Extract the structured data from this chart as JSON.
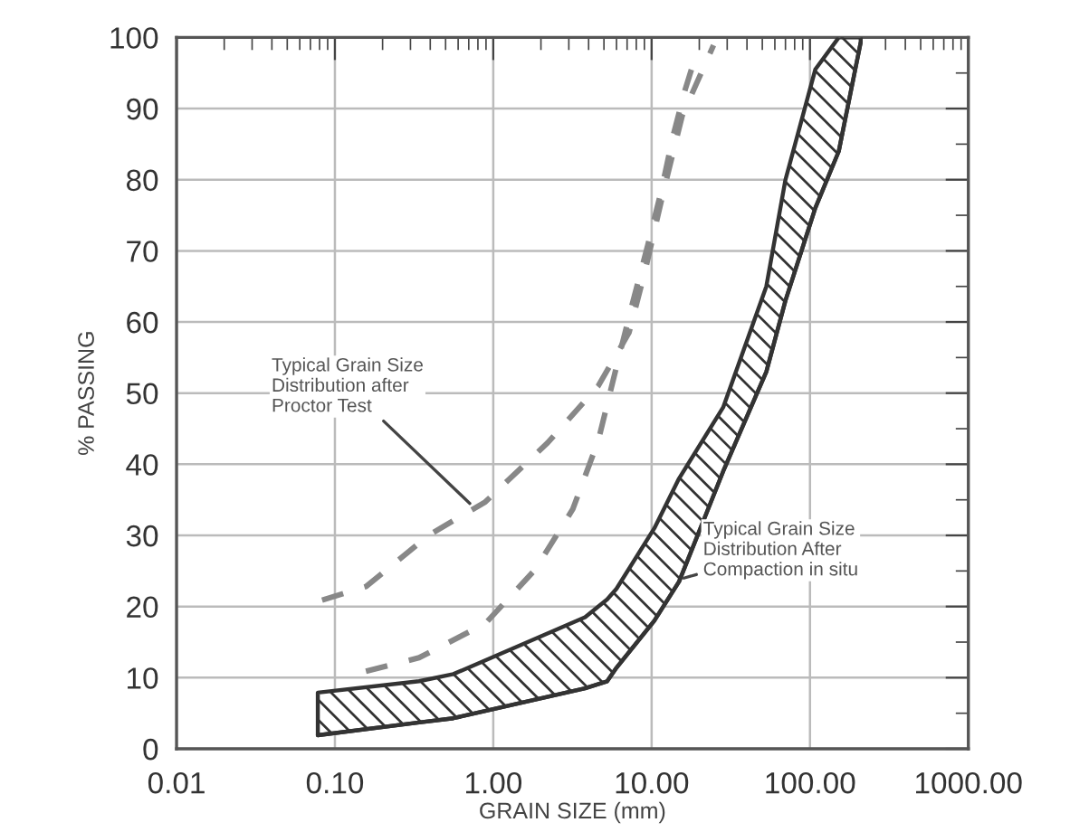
{
  "chart_data": {
    "type": "line",
    "xlabel": "GRAIN SIZE (mm)",
    "ylabel": "% PASSING",
    "log": "x",
    "xlim": [
      0.01,
      1000
    ],
    "ylim": [
      0,
      100
    ],
    "xticks": [
      {
        "value": 0.01,
        "label": "0.01"
      },
      {
        "value": 0.1,
        "label": "0.10"
      },
      {
        "value": 1,
        "label": "1.00"
      },
      {
        "value": 10,
        "label": "10.00"
      },
      {
        "value": 100,
        "label": "100.00"
      },
      {
        "value": 1000,
        "label": "1000.00"
      }
    ],
    "yticks": [
      0,
      10,
      20,
      30,
      40,
      50,
      60,
      70,
      80,
      90,
      100
    ],
    "grid": true,
    "marker": "none",
    "line_style": "solid",
    "series": [
      {
        "color": "#333333",
        "x": [
          0.078,
          0.34,
          0.56,
          3.8,
          5.24,
          6.0,
          10.4,
          14.9,
          28.3,
          53,
          70,
          108,
          152,
          209
        ],
        "values": [
          1.9,
          3.7,
          4.3,
          8.5,
          9.5,
          11.4,
          18,
          23.5,
          39,
          53,
          63,
          76,
          84,
          99.3
        ]
      },
      {
        "type": "area",
        "color": "#333333",
        "x": [
          0.078,
          0.34,
          0.56,
          3.8,
          5.24,
          6.0,
          10.4,
          14.9,
          28.3,
          53,
          70,
          108,
          152,
          209
        ],
        "values": [
          7.9,
          9.5,
          10.5,
          18.5,
          21,
          22.5,
          31,
          38,
          48,
          65,
          80,
          95.5,
          100,
          100
        ]
      },
      {
        "line_style": "dashed",
        "color": "#888888",
        "x": [
          0.083,
          0.157,
          0.39,
          0.89,
          2.2,
          4.6,
          7.2,
          9.05,
          11.9,
          15.6,
          24.6
        ],
        "values": [
          20.9,
          22.8,
          30,
          34.7,
          43,
          51,
          58.5,
          67,
          78.4,
          89,
          98.9
        ]
      },
      {
        "line_style": "dashed",
        "color": "#888888",
        "x": [
          0.157,
          0.34,
          0.89,
          1.84,
          3.18,
          4.6,
          6.0,
          7.5,
          9.46,
          11.5,
          13.6,
          16.3,
          19.6
        ],
        "values": [
          10.9,
          12.8,
          17.6,
          25.2,
          33.7,
          43.3,
          53.7,
          62.3,
          70.8,
          78.4,
          86,
          92.7,
          98.4
        ]
      }
    ],
    "annotations": [
      {
        "text": "Typical Grain Size\nDistribution after\nProctor Test",
        "x": 0.75,
        "y": 34
      },
      {
        "text": "Typical Grain Size\nDistribution After\nCompaction in situ",
        "x": 14.9,
        "y": 23.8
      }
    ]
  }
}
